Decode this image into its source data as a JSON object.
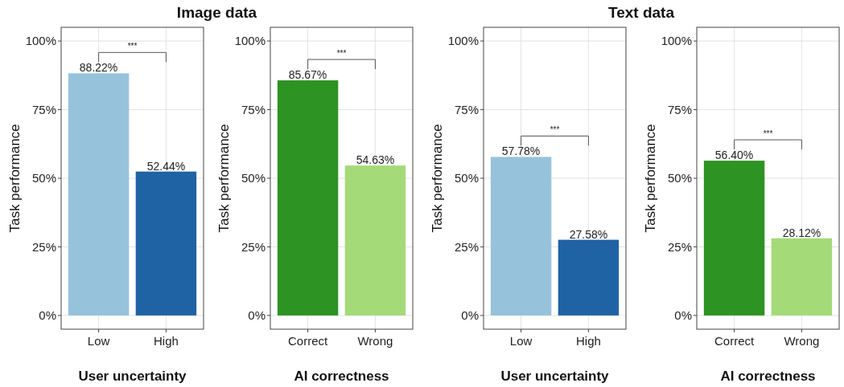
{
  "chart_data": [
    {
      "type": "bar",
      "title": "Image data",
      "xlabel": "User uncertainty",
      "ylabel": "Task performance",
      "categories": [
        "Low",
        "High"
      ],
      "values": [
        88.22,
        52.44
      ],
      "colors": [
        "#97c2dc",
        "#1f63a5"
      ],
      "value_labels": [
        "88.22%",
        "52.44%"
      ],
      "ylim": [
        -5,
        105
      ],
      "yticks": [
        {
          "value": 0,
          "label": "0%"
        },
        {
          "value": 25,
          "label": "25%"
        },
        {
          "value": 50,
          "label": "50%"
        },
        {
          "value": 75,
          "label": "75%"
        },
        {
          "value": 100,
          "label": "100%"
        }
      ],
      "grid": true,
      "annotations": [
        "***"
      ]
    },
    {
      "type": "bar",
      "xlabel": "AI correctness",
      "ylabel": "Task performance",
      "categories": [
        "Correct",
        "Wrong"
      ],
      "values": [
        85.67,
        54.63
      ],
      "colors": [
        "#2d9322",
        "#a4da78"
      ],
      "value_labels": [
        "85.67%",
        "54.63%"
      ],
      "ylim": [
        -5,
        105
      ],
      "yticks": [
        {
          "value": 0,
          "label": "0%"
        },
        {
          "value": 25,
          "label": "25%"
        },
        {
          "value": 50,
          "label": "50%"
        },
        {
          "value": 75,
          "label": "75%"
        },
        {
          "value": 100,
          "label": "100%"
        }
      ],
      "grid": true,
      "annotations": [
        "***"
      ]
    },
    {
      "type": "bar",
      "title": "Text data",
      "xlabel": "User uncertainty",
      "ylabel": "Task performance",
      "categories": [
        "Low",
        "High"
      ],
      "values": [
        57.78,
        27.58
      ],
      "colors": [
        "#97c2dc",
        "#1f63a5"
      ],
      "value_labels": [
        "57.78%",
        "27.58%"
      ],
      "ylim": [
        -5,
        105
      ],
      "yticks": [
        {
          "value": 0,
          "label": "0%"
        },
        {
          "value": 25,
          "label": "25%"
        },
        {
          "value": 50,
          "label": "50%"
        },
        {
          "value": 75,
          "label": "75%"
        },
        {
          "value": 100,
          "label": "100%"
        }
      ],
      "grid": true,
      "annotations": [
        "***"
      ]
    },
    {
      "type": "bar",
      "xlabel": "AI correctness",
      "ylabel": "Task performance",
      "categories": [
        "Correct",
        "Wrong"
      ],
      "values": [
        56.4,
        28.12
      ],
      "colors": [
        "#2d9322",
        "#a4da78"
      ],
      "value_labels": [
        "56.40%",
        "28.12%"
      ],
      "ylim": [
        -5,
        105
      ],
      "yticks": [
        {
          "value": 0,
          "label": "0%"
        },
        {
          "value": 25,
          "label": "25%"
        },
        {
          "value": 50,
          "label": "50%"
        },
        {
          "value": 75,
          "label": "75%"
        },
        {
          "value": 100,
          "label": "100%"
        }
      ],
      "grid": true,
      "annotations": [
        "***"
      ]
    }
  ]
}
